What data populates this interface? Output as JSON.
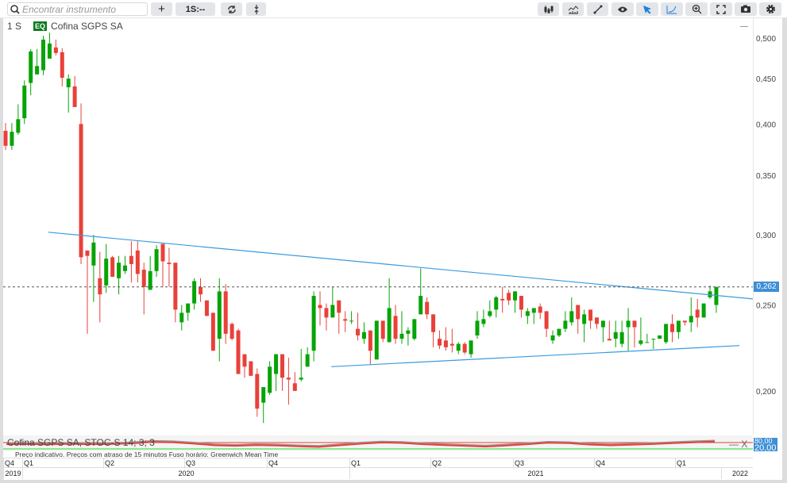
{
  "toolbar": {
    "search_placeholder": "Encontrar instrumento",
    "add_label": "+",
    "interval_label": "1S:--",
    "left_icons": [
      "search-icon",
      "plus-icon",
      "refresh-icon",
      "vertical-arrows-icon"
    ],
    "right_icons": [
      "candlestick-icon",
      "indicator-icon",
      "line-draw-icon",
      "eye-icon",
      "cursor-icon",
      "curve-icon",
      "zoom-in-icon",
      "fullscreen-icon",
      "camera-icon",
      "gear-icon"
    ]
  },
  "legend": {
    "interval": "1 S",
    "badge": "EQ",
    "instrument": "Cofina SGPS SA",
    "minimize": "—"
  },
  "colors": {
    "up": "#06a406",
    "down": "#e8413a",
    "trendline": "#3a9be0",
    "price_line": "#e8413a",
    "badge": "#3f8fd6"
  },
  "price": {
    "current": "0,262"
  },
  "stoch": {
    "label": "Cofina SGPS SA, STOC-S 14; 3; 3",
    "controls": "— X",
    "upper": "80,00",
    "lower": "20,00"
  },
  "notice": "Preço indicativo. Preços com atraso de 15 minutos    Fuso horário: Greenwich Mean Time",
  "xaxis": {
    "quarters": [
      "Q4",
      "Q1",
      "Q2",
      "Q3",
      "Q4",
      "Q1",
      "Q2",
      "Q3",
      "Q4",
      "Q1"
    ],
    "years": [
      "2019",
      "2020",
      "2021",
      "2022"
    ]
  },
  "chart_data": {
    "type": "candlestick",
    "interval": "weekly",
    "yscale": "log",
    "ylim": [
      0.18,
      0.51
    ],
    "yticks": [
      "0,200",
      "0,250",
      "0,300",
      "0,350",
      "0,400",
      "0,450",
      "0,500"
    ],
    "ytick_values": [
      0.2,
      0.25,
      0.3,
      0.35,
      0.4,
      0.45,
      0.5
    ],
    "current_price": 0.262,
    "candles": [
      [
        0.393,
        0.401,
        0.374,
        0.378
      ],
      [
        0.378,
        0.401,
        0.374,
        0.392
      ],
      [
        0.391,
        0.421,
        0.389,
        0.405
      ],
      [
        0.406,
        0.448,
        0.4,
        0.442
      ],
      [
        0.445,
        0.486,
        0.431,
        0.483
      ],
      [
        0.455,
        0.486,
        0.455,
        0.465
      ],
      [
        0.46,
        0.503,
        0.454,
        0.498
      ],
      [
        0.474,
        0.507,
        0.474,
        0.493
      ],
      [
        0.488,
        0.498,
        0.478,
        0.481
      ],
      [
        0.482,
        0.487,
        0.441,
        0.451
      ],
      [
        0.44,
        0.455,
        0.412,
        0.45
      ],
      [
        0.441,
        0.453,
        0.418,
        0.418
      ],
      [
        0.4,
        0.422,
        0.278,
        0.283
      ],
      [
        0.288,
        0.288,
        0.232,
        0.284
      ],
      [
        0.277,
        0.3,
        0.252,
        0.294
      ],
      [
        0.268,
        0.287,
        0.239,
        0.257
      ],
      [
        0.263,
        0.293,
        0.258,
        0.282
      ],
      [
        0.283,
        0.284,
        0.269,
        0.269
      ],
      [
        0.268,
        0.284,
        0.257,
        0.279
      ],
      [
        0.273,
        0.284,
        0.271,
        0.277
      ],
      [
        0.284,
        0.295,
        0.265,
        0.278
      ],
      [
        0.288,
        0.295,
        0.265,
        0.271
      ],
      [
        0.274,
        0.279,
        0.244,
        0.262
      ],
      [
        0.26,
        0.284,
        0.26,
        0.273
      ],
      [
        0.273,
        0.292,
        0.269,
        0.289
      ],
      [
        0.293,
        0.293,
        0.262,
        0.28
      ],
      [
        0.279,
        0.29,
        0.262,
        0.278
      ],
      [
        0.279,
        0.279,
        0.239,
        0.247
      ],
      [
        0.239,
        0.25,
        0.234,
        0.245
      ],
      [
        0.245,
        0.251,
        0.24,
        0.251
      ],
      [
        0.251,
        0.268,
        0.247,
        0.266
      ],
      [
        0.262,
        0.268,
        0.252,
        0.257
      ],
      [
        0.253,
        0.253,
        0.243,
        0.243
      ],
      [
        0.245,
        0.245,
        0.222,
        0.222
      ],
      [
        0.229,
        0.268,
        0.216,
        0.259
      ],
      [
        0.259,
        0.264,
        0.226,
        0.232
      ],
      [
        0.238,
        0.239,
        0.228,
        0.229
      ],
      [
        0.234,
        0.235,
        0.209,
        0.209
      ],
      [
        0.22,
        0.22,
        0.207,
        0.213
      ],
      [
        0.216,
        0.216,
        0.208,
        0.208
      ],
      [
        0.209,
        0.212,
        0.187,
        0.191
      ],
      [
        0.194,
        0.202,
        0.184,
        0.202
      ],
      [
        0.199,
        0.216,
        0.198,
        0.213
      ],
      [
        0.209,
        0.22,
        0.2,
        0.22
      ],
      [
        0.22,
        0.22,
        0.2,
        0.207
      ],
      [
        0.207,
        0.218,
        0.193,
        0.206
      ],
      [
        0.204,
        0.21,
        0.2,
        0.2
      ],
      [
        0.206,
        0.223,
        0.205,
        0.207
      ],
      [
        0.213,
        0.224,
        0.213,
        0.22
      ],
      [
        0.222,
        0.259,
        0.216,
        0.256
      ],
      [
        0.25,
        0.259,
        0.237,
        0.248
      ],
      [
        0.248,
        0.251,
        0.234,
        0.242
      ],
      [
        0.242,
        0.262,
        0.242,
        0.25
      ],
      [
        0.253,
        0.253,
        0.232,
        0.245
      ],
      [
        0.241,
        0.246,
        0.233,
        0.24
      ],
      [
        0.24,
        0.246,
        0.238,
        0.24
      ],
      [
        0.235,
        0.245,
        0.228,
        0.231
      ],
      [
        0.229,
        0.239,
        0.226,
        0.233
      ],
      [
        0.234,
        0.234,
        0.214,
        0.222
      ],
      [
        0.217,
        0.24,
        0.217,
        0.24
      ],
      [
        0.24,
        0.24,
        0.227,
        0.229
      ],
      [
        0.227,
        0.268,
        0.227,
        0.248
      ],
      [
        0.243,
        0.25,
        0.226,
        0.229
      ],
      [
        0.229,
        0.246,
        0.226,
        0.232
      ],
      [
        0.232,
        0.236,
        0.225,
        0.234
      ],
      [
        0.229,
        0.241,
        0.228,
        0.241
      ],
      [
        0.244,
        0.275,
        0.244,
        0.256
      ],
      [
        0.252,
        0.255,
        0.241,
        0.244
      ],
      [
        0.244,
        0.244,
        0.224,
        0.233
      ],
      [
        0.229,
        0.234,
        0.223,
        0.225
      ],
      [
        0.228,
        0.236,
        0.222,
        0.224
      ],
      [
        0.226,
        0.235,
        0.221,
        0.225
      ],
      [
        0.222,
        0.227,
        0.22,
        0.226
      ],
      [
        0.226,
        0.227,
        0.22,
        0.221
      ],
      [
        0.22,
        0.228,
        0.218,
        0.228
      ],
      [
        0.231,
        0.246,
        0.229,
        0.24
      ],
      [
        0.238,
        0.247,
        0.236,
        0.241
      ],
      [
        0.243,
        0.253,
        0.242,
        0.246
      ],
      [
        0.247,
        0.256,
        0.242,
        0.255
      ],
      [
        0.254,
        0.262,
        0.245,
        0.253
      ],
      [
        0.258,
        0.26,
        0.25,
        0.253
      ],
      [
        0.253,
        0.259,
        0.245,
        0.259
      ],
      [
        0.256,
        0.256,
        0.242,
        0.247
      ],
      [
        0.243,
        0.248,
        0.238,
        0.246
      ],
      [
        0.245,
        0.248,
        0.238,
        0.248
      ],
      [
        0.249,
        0.251,
        0.241,
        0.245
      ],
      [
        0.246,
        0.246,
        0.23,
        0.235
      ],
      [
        0.228,
        0.234,
        0.226,
        0.231
      ],
      [
        0.231,
        0.235,
        0.23,
        0.235
      ],
      [
        0.235,
        0.246,
        0.233,
        0.24
      ],
      [
        0.239,
        0.255,
        0.237,
        0.246
      ],
      [
        0.25,
        0.25,
        0.232,
        0.241
      ],
      [
        0.238,
        0.247,
        0.227,
        0.244
      ],
      [
        0.247,
        0.247,
        0.235,
        0.24
      ],
      [
        0.242,
        0.242,
        0.235,
        0.238
      ],
      [
        0.236,
        0.24,
        0.227,
        0.24
      ],
      [
        0.229,
        0.24,
        0.228,
        0.228
      ],
      [
        0.229,
        0.24,
        0.224,
        0.233
      ],
      [
        0.226,
        0.24,
        0.224,
        0.233
      ],
      [
        0.236,
        0.248,
        0.222,
        0.24
      ],
      [
        0.24,
        0.24,
        0.224,
        0.236
      ],
      [
        0.226,
        0.242,
        0.225,
        0.228
      ],
      [
        0.227,
        0.232,
        0.227,
        0.227
      ],
      [
        0.229,
        0.229,
        0.223,
        0.229
      ],
      [
        0.229,
        0.231,
        0.229,
        0.231
      ],
      [
        0.227,
        0.238,
        0.226,
        0.238
      ],
      [
        0.238,
        0.244,
        0.227,
        0.233
      ],
      [
        0.233,
        0.24,
        0.229,
        0.24
      ],
      [
        0.24,
        0.24,
        0.237,
        0.239
      ],
      [
        0.239,
        0.255,
        0.233,
        0.243
      ],
      [
        0.247,
        0.254,
        0.236,
        0.242
      ],
      [
        0.242,
        0.251,
        0.242,
        0.251
      ],
      [
        0.255,
        0.263,
        0.254,
        0.259
      ],
      [
        0.25,
        0.262,
        0.245,
        0.262
      ]
    ],
    "trendlines": [
      {
        "from": [
          6.8,
          0.302
        ],
        "to": [
          118.8,
          0.254
        ]
      },
      {
        "from": [
          51.8,
          0.213
        ],
        "to": [
          116.7,
          0.225
        ]
      }
    ],
    "stoch_levels": [
      80,
      20
    ],
    "stoch_values": [
      70,
      72,
      68,
      74,
      70,
      72,
      78,
      92,
      88,
      76,
      60,
      55,
      62,
      58,
      50,
      45,
      60,
      75,
      86,
      82,
      70,
      62,
      55,
      48,
      58,
      70,
      84,
      80,
      66,
      60,
      65,
      72,
      80,
      88,
      95
    ]
  }
}
